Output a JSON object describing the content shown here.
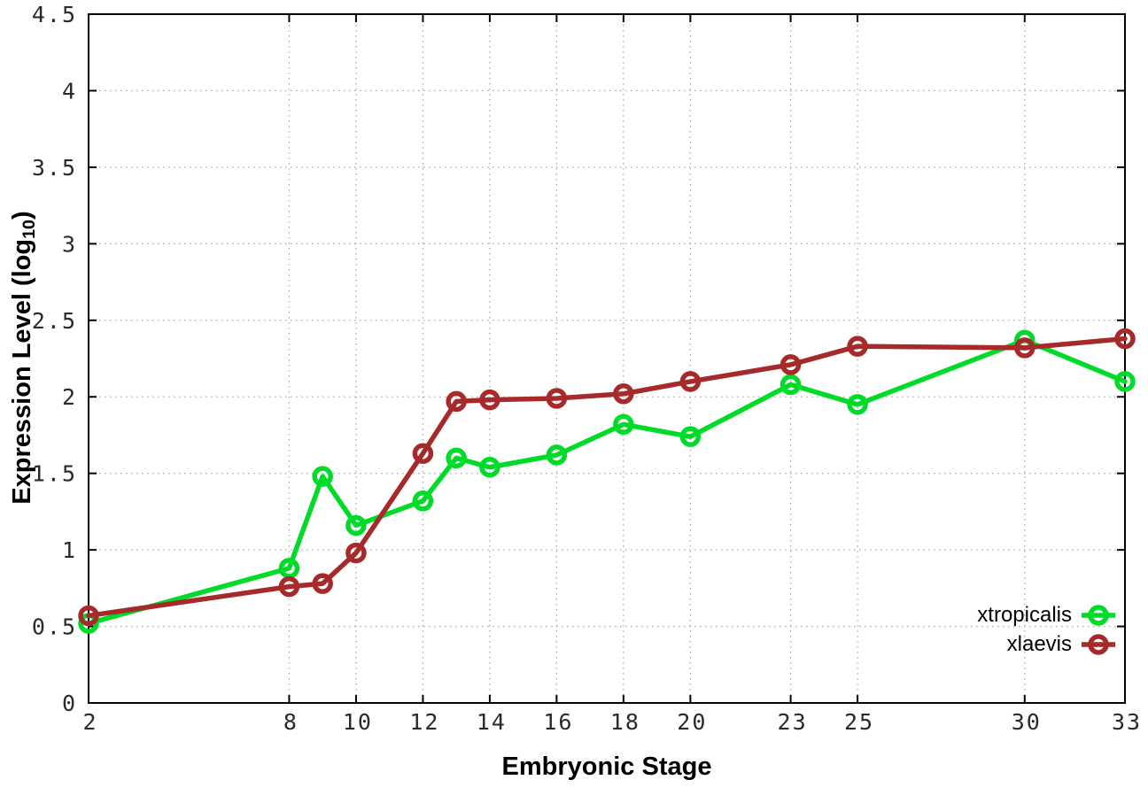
{
  "chart_data": {
    "type": "line",
    "xlabel": "Embryonic Stage",
    "ylabel": "Expression Level (log10)",
    "ylabel_parts": {
      "prefix": "Expression Level (log",
      "sub": "10",
      "suffix": ")"
    },
    "xlim": [
      2,
      33
    ],
    "ylim": [
      0,
      4.5
    ],
    "xticks": [
      2,
      8,
      10,
      12,
      14,
      16,
      18,
      20,
      23,
      25,
      30,
      33
    ],
    "ytick_step": 0.5,
    "grid": true,
    "legend_position": "inside-bottom-right",
    "x": [
      2,
      8,
      9,
      10,
      12,
      13,
      14,
      16,
      18,
      20,
      23,
      25,
      30,
      33
    ],
    "series": [
      {
        "name": "xtropicalis",
        "color": "#00da28",
        "values": [
          0.52,
          0.88,
          1.48,
          1.16,
          1.32,
          1.6,
          1.54,
          1.62,
          1.82,
          1.74,
          2.08,
          1.95,
          2.37,
          2.1
        ]
      },
      {
        "name": "xlaevis",
        "color": "#a62a2a",
        "values": [
          0.57,
          0.76,
          0.78,
          0.98,
          1.63,
          1.97,
          1.98,
          1.99,
          2.02,
          2.1,
          2.21,
          2.33,
          2.32,
          2.38
        ]
      }
    ],
    "colors": {
      "axis": "#000000",
      "grid": "#aaaaaa",
      "tick_label": "#2a2a2a"
    }
  }
}
